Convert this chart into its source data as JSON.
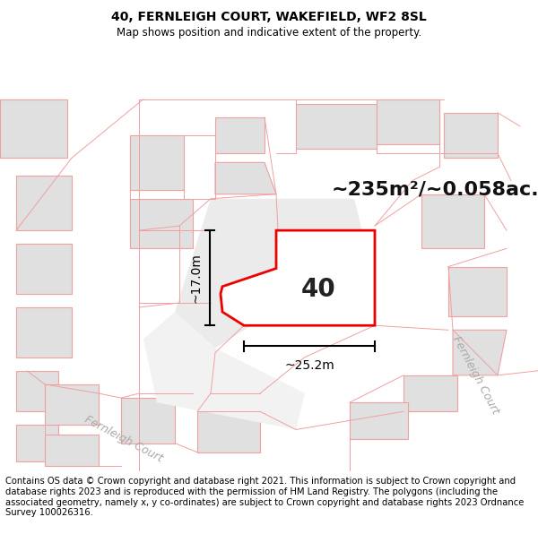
{
  "title": "40, FERNLEIGH COURT, WAKEFIELD, WF2 8SL",
  "subtitle": "Map shows position and indicative extent of the property.",
  "area_label": "~235m²/~0.058ac.",
  "property_number": "40",
  "dim_width": "~25.2m",
  "dim_height": "~17.0m",
  "footer": "Contains OS data © Crown copyright and database right 2021. This information is subject to Crown copyright and database rights 2023 and is reproduced with the permission of HM Land Registry. The polygons (including the associated geometry, namely x, y co-ordinates) are subject to Crown copyright and database rights 2023 Ordnance Survey 100026316.",
  "map_bg": "#f9f9f9",
  "building_fill": "#e0e0e0",
  "building_edge": "#f0a0a0",
  "road_fill": "#f9f9f9",
  "prop_fill": "#ffffff",
  "prop_edge": "#ff0000",
  "label_color": "#aaaaaa",
  "title_fontsize": 10,
  "subtitle_fontsize": 8.5,
  "area_fontsize": 16,
  "number_fontsize": 20,
  "dim_fontsize": 10,
  "road_label_fontsize": 9,
  "footer_fontsize": 7.2
}
